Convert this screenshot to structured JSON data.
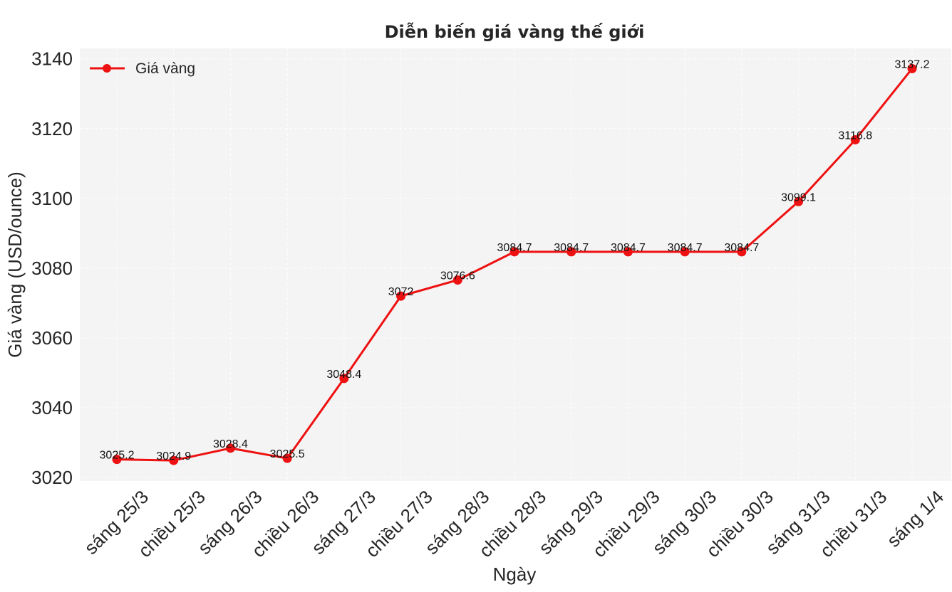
{
  "chart_data": {
    "type": "line",
    "title": "Diễn biến giá vàng thế giới",
    "xlabel": "Ngày",
    "ylabel": "Giá vàng (USD/ounce)",
    "categories": [
      "sáng 25/3",
      "chiều 25/3",
      "sáng 26/3",
      "chiều 26/3",
      "sáng 27/3",
      "chiều 27/3",
      "sáng 28/3",
      "chiều 28/3",
      "sáng 29/3",
      "chiều 29/3",
      "sáng 30/3",
      "chiều 30/3",
      "sáng 31/3",
      "chiều 31/3",
      "sáng 1/4"
    ],
    "series": [
      {
        "name": "Giá vàng",
        "color": "#ee1111",
        "values": [
          3025.2,
          3024.9,
          3028.4,
          3025.5,
          3048.4,
          3072,
          3076.6,
          3084.7,
          3084.7,
          3084.7,
          3084.7,
          3084.7,
          3099.1,
          3116.8,
          3137.2
        ],
        "labels": [
          "3025.2",
          "3024.9",
          "3028.4",
          "3025.5",
          "3048.4",
          "3072",
          "3076.6",
          "3084.7",
          "3084.7",
          "3084.7",
          "3084.7",
          "3084.7",
          "3099.1",
          "3116.8",
          "3137.2"
        ]
      }
    ],
    "yticks": [
      3020,
      3040,
      3060,
      3080,
      3100,
      3120,
      3140
    ],
    "ylim": [
      3019,
      3143
    ],
    "grid": true,
    "legend": "top-left",
    "background": "#f4f4f4"
  }
}
